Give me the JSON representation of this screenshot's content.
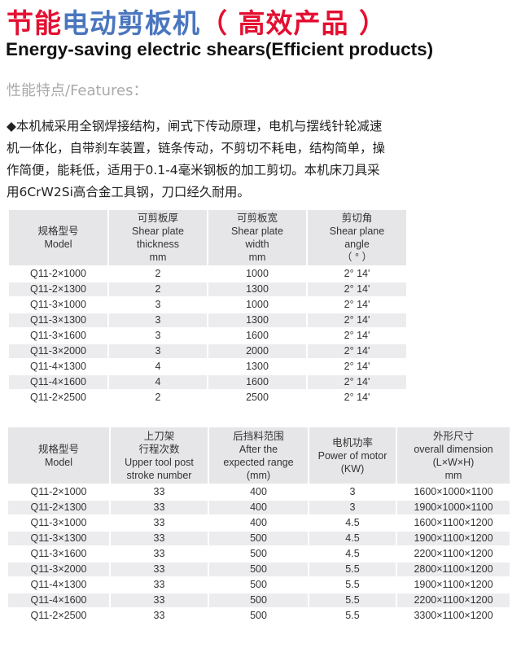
{
  "title": {
    "part1": "节能",
    "part2": "电动剪板机",
    "part3": "（ 高效产品 ）"
  },
  "subtitle": "Energy-saving electric shears(Efficient products)",
  "features_label": "性能特点/Features：",
  "description": [
    "◆本机械采用全钢焊接结构，闸式下传动原理，电机与摆线针轮减速",
    "机一体化，自带刹车装置，链条传动，不剪切不耗电，结构简单，操",
    "作简便，能耗低，适用于0.1-4毫米钢板的加工剪切。本机床刀具采",
    "用6CrW2Si高合金工具钢，刀口经久耐用。"
  ],
  "table1": {
    "headers": [
      [
        "规格型号",
        "Model"
      ],
      [
        "可剪板厚",
        "Shear plate",
        "thickness",
        "mm"
      ],
      [
        "可剪板宽",
        "Shear plate",
        "width",
        "mm"
      ],
      [
        "剪切角",
        "Shear plane",
        "angle",
        "（ ° ）"
      ]
    ],
    "rows": [
      [
        "Q11-2×1000",
        "2",
        "1000",
        "2° 14'"
      ],
      [
        "Q11-2×1300",
        "2",
        "1300",
        "2° 14'"
      ],
      [
        "Q11-3×1000",
        "3",
        "1000",
        "2° 14'"
      ],
      [
        "Q11-3×1300",
        "3",
        "1300",
        "2° 14'"
      ],
      [
        "Q11-3×1600",
        "3",
        "1600",
        "2° 14'"
      ],
      [
        "Q11-3×2000",
        "3",
        "2000",
        "2° 14'"
      ],
      [
        "Q11-4×1300",
        "4",
        "1300",
        "2° 14'"
      ],
      [
        "Q11-4×1600",
        "4",
        "1600",
        "2° 14'"
      ],
      [
        "Q11-2×2500",
        "2",
        "2500",
        "2° 14'"
      ]
    ]
  },
  "table2": {
    "headers": [
      [
        "规格型号",
        "Model"
      ],
      [
        "上刀架",
        "行程次数",
        "Upper tool post",
        "stroke number"
      ],
      [
        "后挡料范围",
        "After the",
        "expected range",
        "(mm)"
      ],
      [
        "电机功率",
        "Power of motor",
        "(KW)"
      ],
      [
        "外形尺寸",
        "overall dimension",
        "(L×W×H)",
        "mm"
      ]
    ],
    "rows": [
      [
        "Q11-2×1000",
        "33",
        "400",
        "3",
        "1600×1000×1100"
      ],
      [
        "Q11-2×1300",
        "33",
        "400",
        "3",
        "1900×1000×1100"
      ],
      [
        "Q11-3×1000",
        "33",
        "400",
        "4.5",
        "1600×1100×1200"
      ],
      [
        "Q11-3×1300",
        "33",
        "500",
        "4.5",
        "1900×1100×1200"
      ],
      [
        "Q11-3×1600",
        "33",
        "500",
        "4.5",
        "2200×1100×1200"
      ],
      [
        "Q11-3×2000",
        "33",
        "500",
        "5.5",
        "2800×1100×1200"
      ],
      [
        "Q11-4×1300",
        "33",
        "500",
        "5.5",
        "1900×1100×1200"
      ],
      [
        "Q11-4×1600",
        "33",
        "500",
        "5.5",
        "2200×1100×1200"
      ],
      [
        "Q11-2×2500",
        "33",
        "500",
        "5.5",
        "3300×1100×1200"
      ]
    ]
  }
}
